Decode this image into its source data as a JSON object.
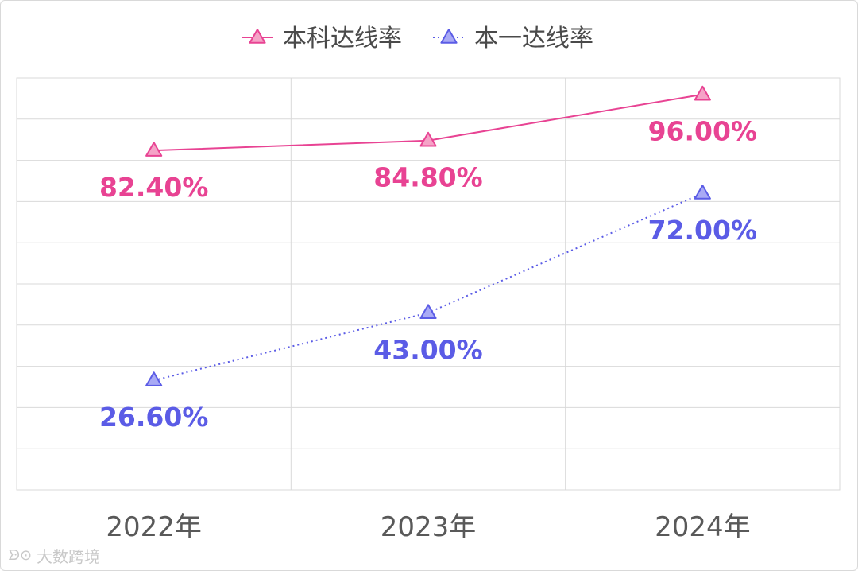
{
  "chart_data": {
    "type": "line",
    "categories": [
      "2022年",
      "2023年",
      "2024年"
    ],
    "series": [
      {
        "name": "本科达线率",
        "values": [
          82.4,
          84.8,
          96.0
        ],
        "labels": [
          "82.40%",
          "84.80%",
          "96.00%"
        ],
        "color": "#e84393",
        "marker_fill": "#f5a3c7",
        "line_style": "solid"
      },
      {
        "name": "本一达线率",
        "values": [
          26.6,
          43.0,
          72.0
        ],
        "labels": [
          "26.60%",
          "43.00%",
          "72.00%"
        ],
        "color": "#5b5ce6",
        "marker_fill": "#a9aaf5",
        "line_style": "dotted"
      }
    ],
    "ylim": [
      0,
      100
    ],
    "grid": true,
    "legend": "top-center",
    "marker": "triangle"
  },
  "watermark": {
    "text": "大数跨境",
    "icon": "logo-icon"
  }
}
